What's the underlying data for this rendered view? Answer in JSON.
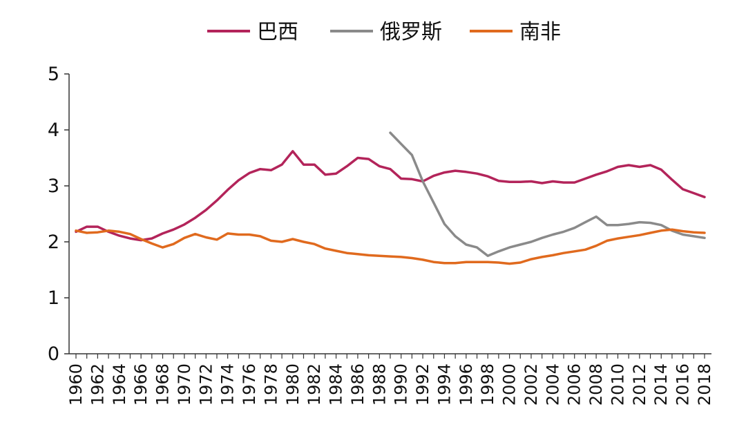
{
  "chart_data": {
    "type": "line",
    "title": "",
    "xlabel": "",
    "ylabel": "",
    "ylim": [
      0,
      5
    ],
    "yticks": [
      "0",
      "1",
      "2",
      "3",
      "4",
      "5"
    ],
    "xlim": [
      1960,
      2018
    ],
    "categories": [
      "1960",
      "1961",
      "1962",
      "1963",
      "1964",
      "1965",
      "1966",
      "1967",
      "1968",
      "1969",
      "1970",
      "1971",
      "1972",
      "1973",
      "1974",
      "1975",
      "1976",
      "1977",
      "1978",
      "1979",
      "1980",
      "1981",
      "1982",
      "1983",
      "1984",
      "1985",
      "1986",
      "1987",
      "1988",
      "1989",
      "1990",
      "1991",
      "1992",
      "1993",
      "1994",
      "1995",
      "1996",
      "1997",
      "1998",
      "1999",
      "2000",
      "2001",
      "2002",
      "2003",
      "2004",
      "2005",
      "2006",
      "2007",
      "2008",
      "2009",
      "2010",
      "2011",
      "2012",
      "2013",
      "2014",
      "2015",
      "2016",
      "2017",
      "2018"
    ],
    "xtick_labels": [
      "1960",
      "1962",
      "1964",
      "1966",
      "1968",
      "1970",
      "1972",
      "1974",
      "1976",
      "1978",
      "1980",
      "1982",
      "1984",
      "1986",
      "1988",
      "1990",
      "1992",
      "1994",
      "1996",
      "1998",
      "2000",
      "2002",
      "2004",
      "2006",
      "2008",
      "2010",
      "2012",
      "2014",
      "2016",
      "2018"
    ],
    "grid": false,
    "legend_position": "top",
    "series": [
      {
        "name": "巴西",
        "color": "#b3245a",
        "x": [
          1960,
          1961,
          1962,
          1963,
          1964,
          1965,
          1966,
          1967,
          1968,
          1969,
          1970,
          1971,
          1972,
          1973,
          1974,
          1975,
          1976,
          1977,
          1978,
          1979,
          1980,
          1981,
          1982,
          1983,
          1984,
          1985,
          1986,
          1987,
          1988,
          1989,
          1990,
          1991,
          1992,
          1993,
          1994,
          1995,
          1996,
          1997,
          1998,
          1999,
          2000,
          2001,
          2002,
          2003,
          2004,
          2005,
          2006,
          2007,
          2008,
          2009,
          2010,
          2011,
          2012,
          2013,
          2014,
          2015,
          2016,
          2017,
          2018
        ],
        "values": [
          2.18,
          2.27,
          2.27,
          2.18,
          2.11,
          2.06,
          2.03,
          2.06,
          2.15,
          2.22,
          2.31,
          2.43,
          2.57,
          2.74,
          2.93,
          3.1,
          3.23,
          3.3,
          3.28,
          3.38,
          3.62,
          3.38,
          3.38,
          3.2,
          3.22,
          3.35,
          3.5,
          3.48,
          3.35,
          3.3,
          3.13,
          3.12,
          3.08,
          3.18,
          3.24,
          3.27,
          3.25,
          3.22,
          3.17,
          3.09,
          3.07,
          3.07,
          3.08,
          3.05,
          3.08,
          3.06,
          3.06,
          3.13,
          3.2,
          3.26,
          3.34,
          3.37,
          3.34,
          3.37,
          3.29,
          3.11,
          2.94,
          2.87,
          2.8
        ]
      },
      {
        "name": "俄罗斯",
        "color": "#8a8a8a",
        "x": [
          1989,
          1990,
          1991,
          1992,
          1993,
          1994,
          1995,
          1996,
          1997,
          1998,
          1999,
          2000,
          2001,
          2002,
          2003,
          2004,
          2005,
          2006,
          2007,
          2008,
          2009,
          2010,
          2011,
          2012,
          2013,
          2014,
          2015,
          2016,
          2017,
          2018
        ],
        "values": [
          3.95,
          3.75,
          3.55,
          3.08,
          2.7,
          2.32,
          2.1,
          1.95,
          1.9,
          1.75,
          1.83,
          1.9,
          1.95,
          2.0,
          2.07,
          2.13,
          2.18,
          2.25,
          2.35,
          2.45,
          2.3,
          2.3,
          2.32,
          2.35,
          2.34,
          2.3,
          2.2,
          2.13,
          2.1,
          2.07
        ]
      },
      {
        "name": "南非",
        "color": "#e06a1e",
        "x": [
          1960,
          1961,
          1962,
          1963,
          1964,
          1965,
          1966,
          1967,
          1968,
          1969,
          1970,
          1971,
          1972,
          1973,
          1974,
          1975,
          1976,
          1977,
          1978,
          1979,
          1980,
          1981,
          1982,
          1983,
          1984,
          1985,
          1986,
          1987,
          1988,
          1989,
          1990,
          1991,
          1992,
          1993,
          1994,
          1995,
          1996,
          1997,
          1998,
          1999,
          2000,
          2001,
          2002,
          2003,
          2004,
          2005,
          2006,
          2007,
          2008,
          2009,
          2010,
          2011,
          2012,
          2013,
          2014,
          2015,
          2016,
          2017,
          2018
        ],
        "values": [
          2.2,
          2.16,
          2.17,
          2.2,
          2.18,
          2.14,
          2.05,
          1.97,
          1.9,
          1.96,
          2.07,
          2.14,
          2.08,
          2.04,
          2.15,
          2.13,
          2.13,
          2.1,
          2.02,
          2.0,
          2.05,
          2.0,
          1.96,
          1.88,
          1.84,
          1.8,
          1.78,
          1.76,
          1.75,
          1.74,
          1.73,
          1.71,
          1.68,
          1.64,
          1.62,
          1.62,
          1.64,
          1.64,
          1.64,
          1.63,
          1.61,
          1.63,
          1.69,
          1.73,
          1.76,
          1.8,
          1.83,
          1.86,
          1.93,
          2.02,
          2.06,
          2.09,
          2.12,
          2.16,
          2.2,
          2.22,
          2.19,
          2.17,
          2.16
        ]
      }
    ]
  }
}
